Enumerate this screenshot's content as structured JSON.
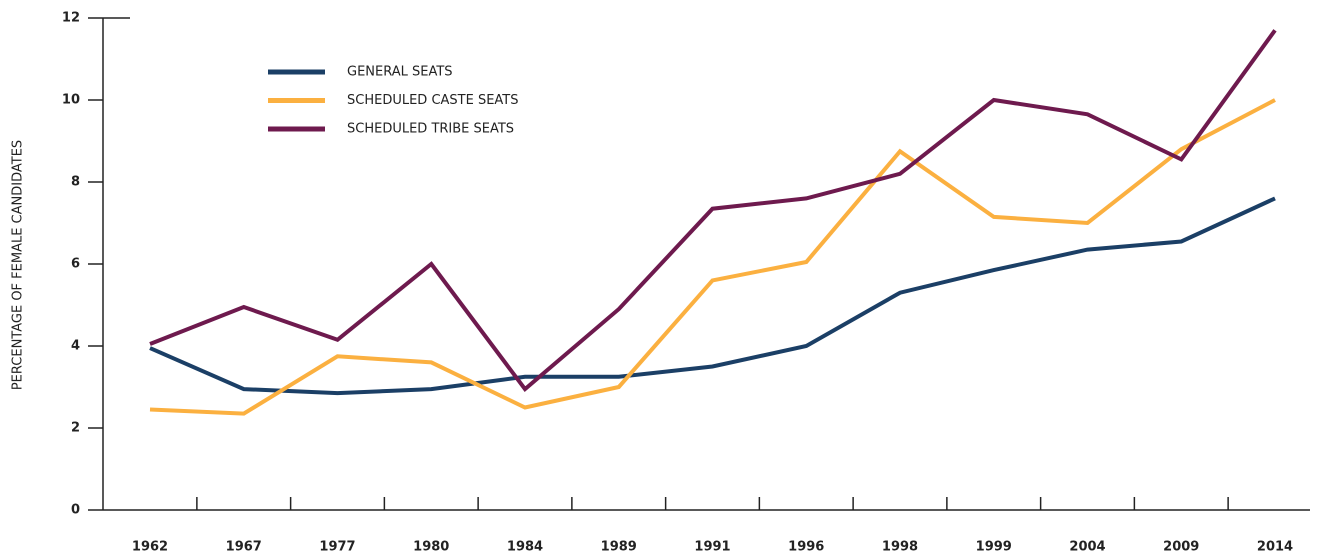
{
  "chart_data": {
    "type": "line",
    "ylabel": "PERCENTAGE OF FEMALE CANDIDATES",
    "categories": [
      "1962",
      "1967",
      "1977",
      "1980",
      "1984",
      "1989",
      "1991",
      "1996",
      "1998",
      "1999",
      "2004",
      "2009",
      "2014"
    ],
    "series": [
      {
        "name": "GENERAL SEATS",
        "color": "#1b3f66",
        "values": [
          3.95,
          2.95,
          2.85,
          2.95,
          3.25,
          3.25,
          3.5,
          4.0,
          5.3,
          5.85,
          6.35,
          6.55,
          7.6
        ]
      },
      {
        "name": "SCHEDULED CASTE SEATS",
        "color": "#fbb040",
        "values": [
          2.45,
          2.35,
          3.75,
          3.6,
          2.5,
          3.0,
          5.6,
          6.05,
          8.75,
          7.15,
          7.0,
          8.8,
          10.0
        ]
      },
      {
        "name": "SCHEDULED TRIBE SEATS",
        "color": "#6e1a4e",
        "values": [
          4.05,
          4.95,
          4.15,
          6.0,
          2.95,
          4.9,
          7.35,
          7.6,
          8.2,
          10.0,
          9.65,
          8.55,
          11.7
        ]
      }
    ],
    "ylim": [
      0,
      12
    ],
    "yticks": [
      0,
      2,
      4,
      6,
      8,
      10,
      12
    ],
    "grid": false,
    "legend": "upper left"
  }
}
